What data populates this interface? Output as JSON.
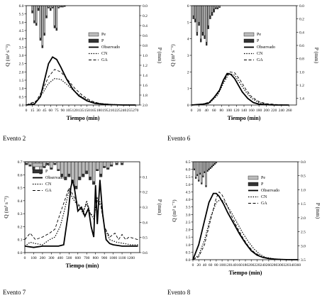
{
  "chart_data": [
    {
      "type": "line",
      "caption": "Evento 2",
      "xlabel": "Tiempo (min)",
      "ylabel": "Q (m³ s⁻¹)",
      "y2label": "P (mm)",
      "xlim": [
        0,
        280
      ],
      "ylim": [
        0,
        6
      ],
      "y2lim": [
        0,
        2
      ],
      "xticks": [
        "0",
        "15",
        "30",
        "45",
        "60",
        "75",
        "90",
        "105",
        "120",
        "135",
        "150",
        "165",
        "180",
        "195",
        "210",
        "225",
        "240",
        "255",
        "270"
      ],
      "yticks": [
        "0.0",
        "0.5",
        "1.0",
        "1.5",
        "2.0",
        "2.5",
        "3.0",
        "3.5",
        "4.0",
        "4.5",
        "5.0",
        "5.5",
        "6.0"
      ],
      "y2ticks": [
        "0.0",
        "0.2",
        "0.4",
        "0.6",
        "0.8",
        "1.0",
        "1.2",
        "1.4",
        "1.6",
        "1.8",
        "2.0"
      ],
      "legend": [
        "Pe",
        "P",
        "Observado",
        "CN",
        "GA"
      ],
      "hyetograph": {
        "x": [
          15,
          20,
          25,
          30,
          35,
          40,
          45,
          50,
          55,
          60,
          65,
          70,
          75,
          80,
          85,
          90,
          95
        ],
        "P": [
          0.15,
          0.35,
          0.4,
          0.1,
          0.7,
          0.85,
          0.6,
          0.25,
          0.05,
          0.1,
          0.05,
          0.45,
          0.5,
          0.05,
          0.03,
          0.03,
          0.02
        ],
        "Pe": [
          0.1,
          0.3,
          0.35,
          0.05,
          0.65,
          0.8,
          0.55,
          0.2,
          0.03,
          0.05,
          0.03,
          0.4,
          0.45,
          0.03,
          0.02,
          0.02,
          0.01
        ]
      },
      "series": [
        {
          "name": "Observado",
          "x": [
            0,
            20,
            35,
            45,
            55,
            65,
            75,
            85,
            100,
            115,
            130,
            150,
            170,
            190,
            210,
            240,
            270
          ],
          "y": [
            0,
            0.05,
            0.5,
            1.5,
            2.5,
            2.9,
            2.75,
            2.3,
            1.55,
            0.95,
            0.55,
            0.25,
            0.1,
            0.05,
            0.02,
            0,
            0
          ]
        },
        {
          "name": "CN",
          "x": [
            0,
            25,
            40,
            55,
            70,
            85,
            100,
            120,
            140,
            160,
            180,
            210,
            240,
            270
          ],
          "y": [
            0,
            0.2,
            0.7,
            1.3,
            1.6,
            1.55,
            1.25,
            0.8,
            0.45,
            0.2,
            0.1,
            0.03,
            0.01,
            0
          ]
        },
        {
          "name": "GA",
          "x": [
            0,
            25,
            40,
            55,
            70,
            85,
            100,
            120,
            140,
            160,
            180,
            210,
            240,
            270
          ],
          "y": [
            0,
            0.25,
            0.9,
            1.7,
            2.15,
            2.0,
            1.6,
            1.0,
            0.55,
            0.25,
            0.1,
            0.03,
            0.01,
            0
          ]
        }
      ]
    },
    {
      "type": "line",
      "caption": "Evento 6",
      "xlabel": "Tiempo (min)",
      "ylabel": "Q (m³ s⁻¹)",
      "y2label": "P (mm)",
      "xlim": [
        0,
        280
      ],
      "ylim": [
        0,
        6
      ],
      "y2lim": [
        0,
        1.5
      ],
      "xticks": [
        "0",
        "20",
        "40",
        "60",
        "80",
        "100",
        "120",
        "140",
        "160",
        "180",
        "200",
        "220",
        "240",
        "260"
      ],
      "yticks": [
        "0",
        "1",
        "2",
        "3",
        "4",
        "5",
        "6"
      ],
      "y2ticks": [
        "0.0",
        "0.2",
        "0.4",
        "0.6",
        "0.8",
        "1.0",
        "1.2",
        "1.4"
      ],
      "legend": [
        "Pe",
        "P",
        "Observado",
        "CN",
        "GA"
      ],
      "hyetograph": {
        "x": [
          5,
          10,
          15,
          20,
          25,
          30,
          35,
          40,
          45,
          50,
          55,
          60,
          65,
          70,
          75
        ],
        "P": [
          0.2,
          0.25,
          0.45,
          0.3,
          0.55,
          0.45,
          0.5,
          0.6,
          0.35,
          0.2,
          0.15,
          0.1,
          0.05,
          0.05,
          0.03
        ],
        "Pe": [
          0.15,
          0.2,
          0.4,
          0.25,
          0.5,
          0.4,
          0.45,
          0.55,
          0.3,
          0.15,
          0.1,
          0.05,
          0.03,
          0.03,
          0.02
        ]
      },
      "series": [
        {
          "name": "Observado",
          "x": [
            0,
            30,
            45,
            60,
            75,
            85,
            95,
            105,
            115,
            125,
            135,
            150,
            165,
            180,
            200,
            220,
            260
          ],
          "y": [
            0,
            0.05,
            0.1,
            0.45,
            0.9,
            1.5,
            1.9,
            1.85,
            1.6,
            1.2,
            0.8,
            0.4,
            0.15,
            0.05,
            0.02,
            0,
            0
          ]
        },
        {
          "name": "CN",
          "x": [
            0,
            30,
            50,
            70,
            85,
            100,
            115,
            130,
            145,
            160,
            180,
            200,
            230,
            260
          ],
          "y": [
            0,
            0.05,
            0.15,
            0.6,
            1.3,
            1.9,
            1.8,
            1.3,
            0.8,
            0.4,
            0.15,
            0.05,
            0.01,
            0
          ]
        },
        {
          "name": "GA",
          "x": [
            0,
            30,
            50,
            70,
            85,
            100,
            115,
            130,
            145,
            160,
            180,
            200,
            230,
            260
          ],
          "y": [
            0,
            0.05,
            0.2,
            0.7,
            1.4,
            2.0,
            1.95,
            1.5,
            0.95,
            0.5,
            0.2,
            0.08,
            0.02,
            0
          ]
        }
      ]
    },
    {
      "type": "line",
      "caption": "Evento 7",
      "xlabel": "Tiempo (min)",
      "ylabel": "Q (m³ s⁻¹)",
      "y2label": "P (mm)",
      "xlim": [
        0,
        1300
      ],
      "ylim": [
        0,
        0.7
      ],
      "y2lim": [
        0,
        0.6
      ],
      "xticks": [
        "0",
        "100",
        "200",
        "300",
        "400",
        "500",
        "600",
        "700",
        "800",
        "900",
        "1000",
        "1100",
        "1200"
      ],
      "yticks": [
        "0.0",
        "0.1",
        "0.2",
        "0.3",
        "0.4",
        "0.5",
        "0.6",
        "0.7"
      ],
      "y2ticks": [
        "0.1",
        "0.2",
        "0.3",
        "0.4",
        "0.5",
        "0.6"
      ],
      "legend": [
        "Pe",
        "P",
        "Observado",
        "CN",
        "GA"
      ],
      "hyetograph": {
        "x": [
          20,
          60,
          100,
          140,
          180,
          220,
          260,
          300,
          340,
          380,
          420,
          460,
          500,
          540,
          580,
          620,
          660,
          700,
          740,
          780,
          820,
          860,
          900,
          940,
          980,
          1040,
          1100
        ],
        "P": [
          0.02,
          0.03,
          0.05,
          0.02,
          0.08,
          0.04,
          0.02,
          0.05,
          0.02,
          0.06,
          0.1,
          0.12,
          0.1,
          0.14,
          0.18,
          0.12,
          0.1,
          0.08,
          0.12,
          0.15,
          0.06,
          0.1,
          0.04,
          0.05,
          0.03,
          0.02,
          0.02
        ],
        "Pe": [
          0.01,
          0.02,
          0.03,
          0.01,
          0.06,
          0.03,
          0.01,
          0.04,
          0.01,
          0.05,
          0.08,
          0.1,
          0.08,
          0.12,
          0.16,
          0.1,
          0.08,
          0.06,
          0.1,
          0.13,
          0.05,
          0.08,
          0.03,
          0.04,
          0.02,
          0.01,
          0.01
        ]
      },
      "series": [
        {
          "name": "Observado",
          "x": [
            0,
            100,
            200,
            300,
            380,
            440,
            490,
            520,
            540,
            560,
            600,
            640,
            680,
            720,
            750,
            780,
            800,
            820,
            850,
            880,
            920,
            960,
            1000,
            1100,
            1200,
            1280
          ],
          "y": [
            0.05,
            0.04,
            0.05,
            0.05,
            0.05,
            0.06,
            0.3,
            0.5,
            0.56,
            0.5,
            0.32,
            0.35,
            0.28,
            0.34,
            0.2,
            0.12,
            0.52,
            0.22,
            0.56,
            0.3,
            0.1,
            0.07,
            0.06,
            0.05,
            0.05,
            0.05
          ]
        },
        {
          "name": "CN",
          "x": [
            0,
            60,
            120,
            200,
            280,
            340,
            400,
            450,
            500,
            540,
            580,
            620,
            660,
            700,
            740,
            780,
            820,
            860,
            900,
            960,
            1040,
            1120,
            1200,
            1280
          ],
          "y": [
            0.05,
            0.08,
            0.07,
            0.06,
            0.1,
            0.12,
            0.2,
            0.33,
            0.48,
            0.42,
            0.38,
            0.35,
            0.3,
            0.4,
            0.3,
            0.26,
            0.42,
            0.38,
            0.2,
            0.1,
            0.08,
            0.07,
            0.06,
            0.06
          ]
        },
        {
          "name": "GA",
          "x": [
            0,
            60,
            120,
            200,
            280,
            340,
            400,
            450,
            500,
            540,
            580,
            620,
            660,
            700,
            740,
            780,
            820,
            860,
            900,
            960,
            1020,
            1060,
            1100,
            1140,
            1180,
            1280
          ],
          "y": [
            0.1,
            0.15,
            0.1,
            0.12,
            0.15,
            0.18,
            0.3,
            0.4,
            0.5,
            0.45,
            0.4,
            0.36,
            0.32,
            0.38,
            0.3,
            0.28,
            0.4,
            0.36,
            0.2,
            0.12,
            0.15,
            0.1,
            0.14,
            0.1,
            0.12,
            0.1
          ]
        }
      ]
    },
    {
      "type": "line",
      "caption": "Evento 8",
      "xlabel": "Tiempo (min)",
      "ylabel": "Q (m³ s⁻¹)",
      "y2label": "P (mm)",
      "xlim": [
        0,
        360
      ],
      "ylim": [
        0,
        6.5
      ],
      "y2lim": [
        0,
        3.5
      ],
      "xticks": [
        "0",
        "20",
        "40",
        "60",
        "80",
        "100",
        "120",
        "140",
        "160",
        "180",
        "200",
        "220",
        "240",
        "260",
        "280",
        "300",
        "320",
        "340",
        "360"
      ],
      "yticks": [
        "0.0",
        "0.5",
        "1.0",
        "1.5",
        "2.0",
        "2.5",
        "3.0",
        "3.5",
        "4.0",
        "4.5",
        "5.0",
        "5.5",
        "6.0",
        "6.5"
      ],
      "y2ticks": [
        "0.0",
        "0.5",
        "1.0",
        "1.5",
        "2.0",
        "2.5",
        "3.0",
        "3.5"
      ],
      "legend": [
        "Pe",
        "P",
        "Observado",
        "CN",
        "GA"
      ],
      "hyetograph": {
        "x": [
          5,
          10,
          15,
          20,
          25,
          30,
          35,
          40,
          45,
          50,
          55,
          60,
          65,
          70,
          75,
          80
        ],
        "P": [
          0.3,
          0.6,
          0.5,
          0.7,
          0.45,
          0.8,
          0.55,
          0.4,
          0.9,
          0.35,
          0.3,
          0.25,
          0.2,
          0.15,
          0.1,
          0.05
        ],
        "Pe": [
          0.25,
          0.55,
          0.45,
          0.65,
          0.4,
          0.75,
          0.5,
          0.35,
          0.85,
          0.3,
          0.25,
          0.2,
          0.15,
          0.1,
          0.05,
          0.03
        ]
      },
      "series": [
        {
          "name": "Observado",
          "x": [
            0,
            20,
            40,
            55,
            70,
            80,
            90,
            105,
            120,
            140,
            160,
            180,
            200,
            220,
            240,
            260,
            280,
            300,
            330,
            360
          ],
          "y": [
            0,
            1.0,
            2.6,
            3.8,
            4.4,
            4.4,
            4.2,
            3.7,
            3.1,
            2.4,
            1.7,
            1.1,
            0.6,
            0.3,
            0.15,
            0.08,
            0.04,
            0.02,
            0,
            0
          ]
        },
        {
          "name": "CN",
          "x": [
            0,
            20,
            40,
            60,
            80,
            95,
            110,
            130,
            150,
            170,
            190,
            210,
            230,
            250,
            280,
            310,
            340,
            360
          ],
          "y": [
            0,
            0.3,
            1.3,
            2.8,
            3.8,
            4.0,
            3.8,
            3.2,
            2.5,
            1.8,
            1.2,
            0.7,
            0.35,
            0.15,
            0.05,
            0.02,
            0,
            0
          ]
        },
        {
          "name": "GA",
          "x": [
            0,
            20,
            40,
            60,
            80,
            90,
            100,
            115,
            130,
            150,
            170,
            190,
            210,
            230,
            250,
            280,
            310,
            360
          ],
          "y": [
            0,
            0.2,
            1.0,
            2.6,
            4.1,
            4.5,
            4.3,
            3.7,
            3.0,
            2.2,
            1.5,
            0.9,
            0.5,
            0.25,
            0.1,
            0.03,
            0,
            0
          ]
        }
      ]
    }
  ]
}
